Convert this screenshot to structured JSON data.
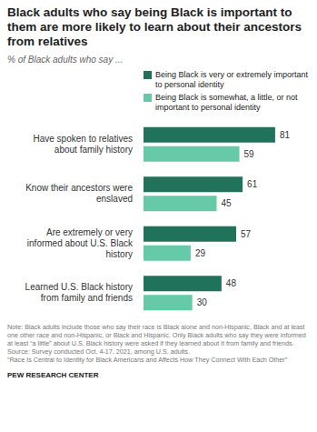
{
  "chart_data": {
    "type": "bar",
    "title": "Black adults who say being Black is important to them are more likely to learn about their ancestors from relatives",
    "subtitle": "% of Black adults who say ...",
    "orientation": "horizontal",
    "categories": [
      "Have spoken to relatives about family history",
      "Know their ancestors were enslaved",
      "Are extremely or very informed about U.S. Black history",
      "Learned U.S. Black history from family and friends"
    ],
    "series": [
      {
        "name": "Being Black is very or extremely important to personal identity",
        "color": "#20725a",
        "values": [
          81,
          61,
          57,
          48
        ]
      },
      {
        "name": "Being Black is somewhat, a little, or not important to personal identity",
        "color": "#66c9a7",
        "values": [
          59,
          45,
          29,
          30
        ]
      }
    ],
    "xlim": [
      0,
      90
    ],
    "data_labels": true,
    "tick_labels": "y",
    "annotations": [
      "Note: Black adults include those who say their race is Black alone and non-Hispanic, Black and at least one other race and non-Hispanic, or Black and Hispanic. Only Black adults who say they were informed at least “a little” about U.S. Black history were asked if they learned about it from family and friends.",
      "Source: Survey conducted Oct. 4-17, 2021, among U.S. adults.",
      "“Race Is Central to Identity for Black Americans and Affects How They Connect With Each Other”",
      "PEW RESEARCH CENTER"
    ]
  }
}
